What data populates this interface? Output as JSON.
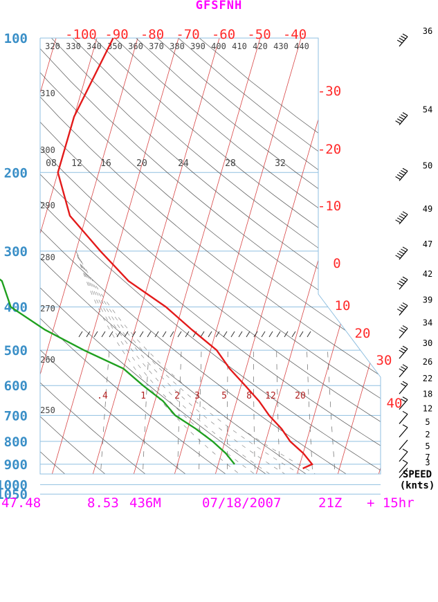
{
  "title": "GFSFNH",
  "footer": {
    "lat": "47.48",
    "lon": "8.53",
    "elevation": "436M",
    "date": "07/18/2007",
    "time": "21Z",
    "forecast": "+ 15hr"
  },
  "colors": {
    "title": "#ff00ff",
    "pressure": "#3a8fc7",
    "temperature_text": "#ff2a2a",
    "temperature_profile": "#e31a1a",
    "dewpoint_profile": "#1fa01f",
    "isotherm": "#d84444",
    "isobar": "#8fbfe0",
    "adiabat": "#555555",
    "mixing_ratio": "#666666"
  },
  "wind_header": [
    "SPEED",
    "(knts)"
  ],
  "chart_data": {
    "type": "skew-t log-p",
    "pressure_levels_hpa": [
      100,
      200,
      300,
      400,
      500,
      600,
      700,
      800,
      900,
      1000,
      1050
    ],
    "pressure_labels": [
      "100",
      "200",
      "300",
      "400",
      "500",
      "600",
      "700",
      "800",
      "900",
      "1000",
      "1050"
    ],
    "temperature_labels_top": [
      "-100",
      "-90",
      "-80",
      "-70",
      "-60",
      "-50",
      "-40"
    ],
    "temperature_labels_right": [
      "-30",
      "-20",
      "-10",
      "0",
      "10",
      "20",
      "30",
      "40"
    ],
    "potential_temperature_labels_top": [
      "320",
      "330",
      "340",
      "350",
      "360",
      "370",
      "380",
      "390",
      "400",
      "410",
      "420",
      "430",
      "440"
    ],
    "potential_temperature_labels_left": [
      "310",
      "300",
      "290",
      "280",
      "270",
      "260",
      "250"
    ],
    "mixing_ratio_labels_upper": [
      "08",
      "12",
      "16",
      "20",
      "24",
      "28",
      "32"
    ],
    "mixing_ratio_labels_lower": [
      ".4",
      "1",
      "2",
      "3",
      "5",
      "8",
      "12",
      "20"
    ],
    "temperature_c": {
      "pressure": [
        100,
        150,
        200,
        250,
        300,
        350,
        400,
        450,
        500,
        550,
        600,
        650,
        700,
        750,
        800,
        850,
        900,
        920
      ],
      "values": [
        -56,
        -60,
        -60,
        -54,
        -44,
        -35,
        -24,
        -16,
        -8.5,
        -4,
        1,
        5.5,
        9,
        13,
        16,
        20,
        23,
        21
      ]
    },
    "dewpoint_c": {
      "pressure": [
        160,
        200,
        250,
        300,
        350,
        400,
        450,
        500,
        550,
        600,
        650,
        700,
        750,
        800,
        850,
        900
      ],
      "values": [
        -95,
        -92,
        -82,
        -78,
        -66,
        -62,
        -52,
        -41,
        -30,
        -24,
        -18,
        -14,
        -8,
        -3,
        1,
        4
      ]
    },
    "wind_speeds_knots": {
      "pressure": [
        100,
        150,
        200,
        250,
        300,
        350,
        400,
        450,
        500,
        550,
        600,
        650,
        700,
        750,
        800,
        850,
        900,
        925
      ],
      "values": [
        36,
        54,
        50,
        49,
        47,
        42,
        39,
        34,
        30,
        26,
        22,
        18,
        12,
        5,
        2,
        5,
        7,
        3
      ]
    },
    "wind_speed_labels": [
      "36",
      "54",
      "50",
      "49",
      "47",
      "42",
      "39",
      "34",
      "30",
      "26",
      "22",
      "18",
      "12",
      "5",
      "2",
      "5",
      "7",
      "3"
    ]
  }
}
